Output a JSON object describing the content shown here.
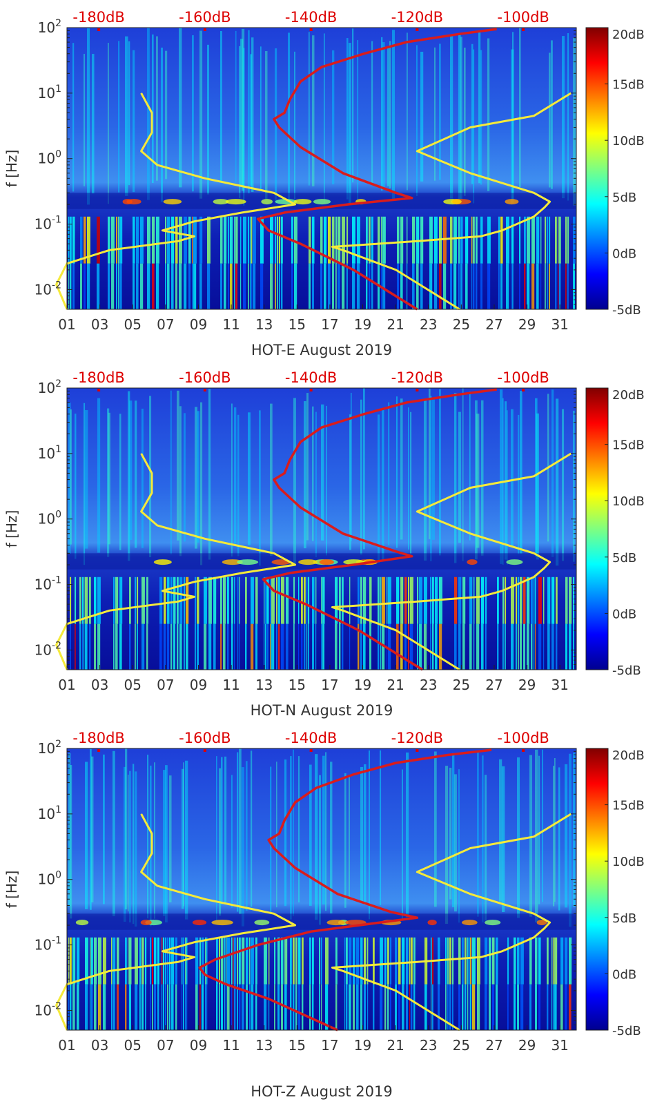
{
  "colors": {
    "model_curve": "#f5ea3a",
    "median_curve": "#d91c1c",
    "top_axis_text": "#dd0000"
  },
  "colorbar": {
    "ticks": [
      "-5dB",
      "0dB",
      "5dB",
      "10dB",
      "15dB",
      "20dB"
    ],
    "range": [
      -5,
      20
    ]
  },
  "chart_data": [
    {
      "type": "heatmap",
      "xlabel": "HOT-E August 2019",
      "ylabel": "f [Hz]",
      "x_ticks": [
        "01",
        "03",
        "05",
        "07",
        "09",
        "11",
        "13",
        "15",
        "17",
        "19",
        "21",
        "23",
        "25",
        "27",
        "29",
        "31"
      ],
      "y_tick_exponents": [
        "-2",
        "-1",
        "0",
        "1",
        "2"
      ],
      "yscale": "log",
      "ylim": [
        0.005,
        100
      ],
      "xlim": [
        1,
        32
      ],
      "top_axis_ticks": [
        "-180dB",
        "-160dB",
        "-140dB",
        "-120dB",
        "-100dB"
      ],
      "top_axis_values": [
        -180,
        -160,
        -140,
        -120,
        -100
      ],
      "top_axis_range": [
        -186,
        -90
      ],
      "colorbar_range": [
        -5,
        20
      ],
      "series": [
        {
          "points": [
            [
              -186,
              0.005
            ],
            [
              -188,
              0.012
            ],
            [
              -186,
              0.025
            ],
            [
              -178,
              0.04
            ],
            [
              -165,
              0.055
            ],
            [
              -162,
              0.065
            ],
            [
              -168,
              0.08
            ],
            [
              -162,
              0.11
            ],
            [
              -153,
              0.15
            ],
            [
              -143,
              0.2
            ],
            [
              -147,
              0.3
            ],
            [
              -160,
              0.5
            ],
            [
              -169,
              0.8
            ],
            [
              -172,
              1.3
            ],
            [
              -170,
              2.5
            ],
            [
              -170,
              5
            ],
            [
              -172,
              10
            ]
          ]
        },
        {
          "points": [
            [
              -112,
              0.005
            ],
            [
              -124,
              0.02
            ],
            [
              -134,
              0.04
            ],
            [
              -136,
              0.045
            ],
            [
              -120,
              0.055
            ],
            [
              -108,
              0.065
            ],
            [
              -104,
              0.08
            ],
            [
              -98,
              0.13
            ],
            [
              -96,
              0.18
            ],
            [
              -95,
              0.22
            ],
            [
              -98,
              0.3
            ],
            [
              -110,
              0.6
            ],
            [
              -120,
              1.3
            ],
            [
              -110,
              3
            ],
            [
              -98,
              4.5
            ],
            [
              -91,
              10
            ]
          ]
        },
        {
          "points": [
            [
              -120,
              0.005
            ],
            [
              -132,
              0.02
            ],
            [
              -142,
              0.05
            ],
            [
              -148,
              0.08
            ],
            [
              -150,
              0.12
            ],
            [
              -145,
              0.15
            ],
            [
              -133,
              0.2
            ],
            [
              -121,
              0.25
            ],
            [
              -124,
              0.3
            ],
            [
              -134,
              0.6
            ],
            [
              -142,
              1.5
            ],
            [
              -146,
              3
            ],
            [
              -147,
              4
            ],
            [
              -145,
              5
            ],
            [
              -144,
              8
            ],
            [
              -142,
              15
            ],
            [
              -138,
              25
            ],
            [
              -130,
              40
            ],
            [
              -122,
              60
            ],
            [
              -112,
              80
            ],
            [
              -105,
              95
            ]
          ]
        }
      ]
    },
    {
      "type": "heatmap",
      "xlabel": "HOT-N August 2019",
      "ylabel": "f [Hz]",
      "x_ticks": [
        "01",
        "03",
        "05",
        "07",
        "09",
        "11",
        "13",
        "15",
        "17",
        "19",
        "21",
        "23",
        "25",
        "27",
        "29",
        "31"
      ],
      "y_tick_exponents": [
        "-2",
        "-1",
        "0",
        "1",
        "2"
      ],
      "yscale": "log",
      "ylim": [
        0.005,
        100
      ],
      "xlim": [
        1,
        32
      ],
      "top_axis_ticks": [
        "-180dB",
        "-160dB",
        "-140dB",
        "-120dB",
        "-100dB"
      ],
      "top_axis_values": [
        -180,
        -160,
        -140,
        -120,
        -100
      ],
      "top_axis_range": [
        -186,
        -90
      ],
      "colorbar_range": [
        -5,
        20
      ],
      "series": [
        {
          "points": [
            [
              -186,
              0.005
            ],
            [
              -188,
              0.012
            ],
            [
              -186,
              0.025
            ],
            [
              -178,
              0.04
            ],
            [
              -165,
              0.055
            ],
            [
              -162,
              0.065
            ],
            [
              -168,
              0.08
            ],
            [
              -162,
              0.11
            ],
            [
              -153,
              0.15
            ],
            [
              -143,
              0.2
            ],
            [
              -147,
              0.3
            ],
            [
              -160,
              0.5
            ],
            [
              -169,
              0.8
            ],
            [
              -172,
              1.3
            ],
            [
              -170,
              2.5
            ],
            [
              -170,
              5
            ],
            [
              -172,
              10
            ]
          ]
        },
        {
          "points": [
            [
              -112,
              0.005
            ],
            [
              -124,
              0.02
            ],
            [
              -134,
              0.04
            ],
            [
              -136,
              0.045
            ],
            [
              -120,
              0.055
            ],
            [
              -108,
              0.065
            ],
            [
              -104,
              0.08
            ],
            [
              -98,
              0.13
            ],
            [
              -96,
              0.18
            ],
            [
              -95,
              0.22
            ],
            [
              -98,
              0.3
            ],
            [
              -110,
              0.6
            ],
            [
              -120,
              1.3
            ],
            [
              -110,
              3
            ],
            [
              -98,
              4.5
            ],
            [
              -91,
              10
            ]
          ]
        },
        {
          "points": [
            [
              -119,
              0.005
            ],
            [
              -131,
              0.02
            ],
            [
              -141,
              0.05
            ],
            [
              -147,
              0.08
            ],
            [
              -149,
              0.12
            ],
            [
              -144,
              0.15
            ],
            [
              -132,
              0.2
            ],
            [
              -121,
              0.27
            ],
            [
              -124,
              0.32
            ],
            [
              -134,
              0.6
            ],
            [
              -142,
              1.5
            ],
            [
              -146,
              3
            ],
            [
              -147,
              4
            ],
            [
              -145,
              5
            ],
            [
              -144,
              8
            ],
            [
              -142,
              15
            ],
            [
              -138,
              25
            ],
            [
              -130,
              40
            ],
            [
              -122,
              60
            ],
            [
              -112,
              80
            ],
            [
              -105,
              95
            ]
          ]
        }
      ]
    },
    {
      "type": "heatmap",
      "xlabel": "HOT-Z August 2019",
      "ylabel": "f [Hz]",
      "x_ticks": [
        "01",
        "03",
        "05",
        "07",
        "09",
        "11",
        "13",
        "15",
        "17",
        "19",
        "21",
        "23",
        "25",
        "27",
        "29",
        "31"
      ],
      "y_tick_exponents": [
        "-2",
        "-1",
        "0",
        "1",
        "2"
      ],
      "yscale": "log",
      "ylim": [
        0.005,
        100
      ],
      "xlim": [
        1,
        32
      ],
      "top_axis_ticks": [
        "-180dB",
        "-160dB",
        "-140dB",
        "-120dB",
        "-100dB"
      ],
      "top_axis_values": [
        -180,
        -160,
        -140,
        -120,
        -100
      ],
      "top_axis_range": [
        -186,
        -90
      ],
      "colorbar_range": [
        -5,
        20
      ],
      "series": [
        {
          "points": [
            [
              -186,
              0.005
            ],
            [
              -188,
              0.012
            ],
            [
              -186,
              0.025
            ],
            [
              -178,
              0.04
            ],
            [
              -165,
              0.055
            ],
            [
              -162,
              0.065
            ],
            [
              -168,
              0.08
            ],
            [
              -162,
              0.11
            ],
            [
              -153,
              0.15
            ],
            [
              -143,
              0.2
            ],
            [
              -147,
              0.3
            ],
            [
              -160,
              0.5
            ],
            [
              -169,
              0.8
            ],
            [
              -172,
              1.3
            ],
            [
              -170,
              2.5
            ],
            [
              -170,
              5
            ],
            [
              -172,
              10
            ]
          ]
        },
        {
          "points": [
            [
              -112,
              0.005
            ],
            [
              -124,
              0.02
            ],
            [
              -134,
              0.04
            ],
            [
              -136,
              0.045
            ],
            [
              -120,
              0.055
            ],
            [
              -108,
              0.065
            ],
            [
              -104,
              0.08
            ],
            [
              -98,
              0.13
            ],
            [
              -96,
              0.18
            ],
            [
              -95,
              0.22
            ],
            [
              -98,
              0.3
            ],
            [
              -110,
              0.6
            ],
            [
              -120,
              1.3
            ],
            [
              -110,
              3
            ],
            [
              -98,
              4.5
            ],
            [
              -91,
              10
            ]
          ]
        },
        {
          "points": [
            [
              -135,
              0.005
            ],
            [
              -148,
              0.015
            ],
            [
              -156,
              0.025
            ],
            [
              -160,
              0.035
            ],
            [
              -161,
              0.045
            ],
            [
              -158,
              0.06
            ],
            [
              -150,
              0.1
            ],
            [
              -140,
              0.16
            ],
            [
              -127,
              0.22
            ],
            [
              -120,
              0.26
            ],
            [
              -125,
              0.32
            ],
            [
              -135,
              0.6
            ],
            [
              -143,
              1.5
            ],
            [
              -147,
              3
            ],
            [
              -148,
              4
            ],
            [
              -146,
              5
            ],
            [
              -145,
              8
            ],
            [
              -143,
              15
            ],
            [
              -139,
              25
            ],
            [
              -132,
              40
            ],
            [
              -124,
              60
            ],
            [
              -114,
              80
            ],
            [
              -106,
              95
            ]
          ]
        }
      ]
    }
  ]
}
